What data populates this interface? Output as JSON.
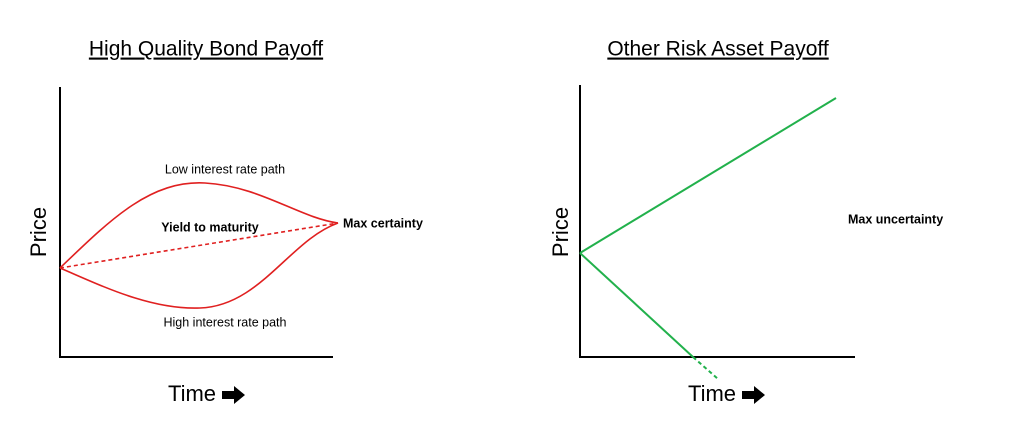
{
  "left_panel": {
    "title": "High Quality Bond Payoff",
    "y_label": "Price",
    "x_label": "Time",
    "annotations": [
      "Low interest rate path",
      "Yield to maturity",
      "Max certainty",
      "High interest rate path"
    ]
  },
  "right_panel": {
    "title": "Other Risk Asset Payoff",
    "y_label": "Price",
    "x_label": "Time",
    "annotations": [
      "Max uncertainty"
    ]
  }
}
